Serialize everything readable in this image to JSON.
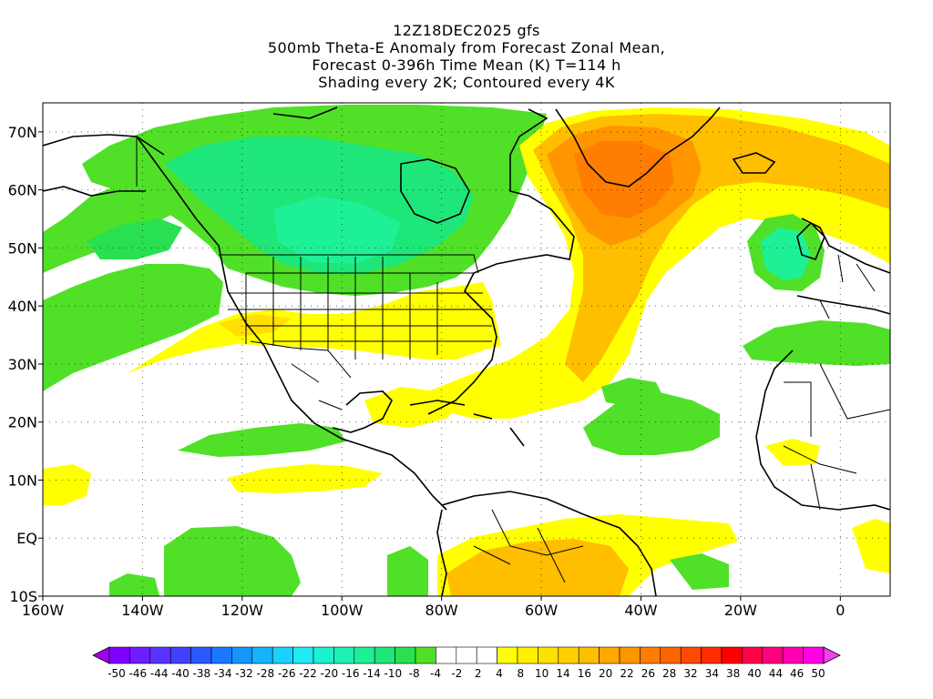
{
  "title": {
    "line1": "12Z18DEC2025 gfs",
    "line2": "500mb Theta-E Anomaly from Forecast Zonal Mean,",
    "line3": "Forecast 0-396h Time Mean (K) T=114 h",
    "line4": "Shading every 2K; Contoured every 4K"
  },
  "map": {
    "lon_range": [
      -160,
      10
    ],
    "lat_range": [
      -10,
      75
    ],
    "lat_ticks": [
      "70N",
      "60N",
      "50N",
      "40N",
      "30N",
      "20N",
      "10N",
      "EQ",
      "10S"
    ],
    "lon_ticks": [
      "160W",
      "140W",
      "120W",
      "100W",
      "80W",
      "60W",
      "40W",
      "20W",
      "0"
    ],
    "grid": true
  },
  "colorbar": {
    "labels": [
      "-50",
      "-46",
      "-44",
      "-40",
      "-38",
      "-34",
      "-32",
      "-28",
      "-26",
      "-22",
      "-20",
      "-16",
      "-14",
      "-10",
      "-8",
      "-4",
      "-2",
      "2",
      "4",
      "8",
      "10",
      "14",
      "16",
      "20",
      "22",
      "26",
      "28",
      "32",
      "34",
      "38",
      "40",
      "44",
      "46",
      "50"
    ],
    "colors": {
      "min_arrow": "#a000f0",
      "max_arrow": "#f040f0",
      "cells": [
        "#8000ff",
        "#6f1cff",
        "#5a32ff",
        "#4040ff",
        "#2a5aff",
        "#1a78ff",
        "#1496ff",
        "#14b4ff",
        "#1ad2ff",
        "#1eebf5",
        "#1ef0d2",
        "#1ef0b4",
        "#1ef096",
        "#1ee678",
        "#28e050",
        "#50e028",
        "#ffffff",
        "#ffffff",
        "#ffffff",
        "#ffff00",
        "#fff000",
        "#ffe000",
        "#ffd000",
        "#ffbe00",
        "#ffa800",
        "#ff9600",
        "#ff7d00",
        "#ff6400",
        "#ff4b00",
        "#ff2d00",
        "#ff0000",
        "#ff004b",
        "#ff0080",
        "#ff00b4",
        "#ff00e6"
      ]
    }
  }
}
